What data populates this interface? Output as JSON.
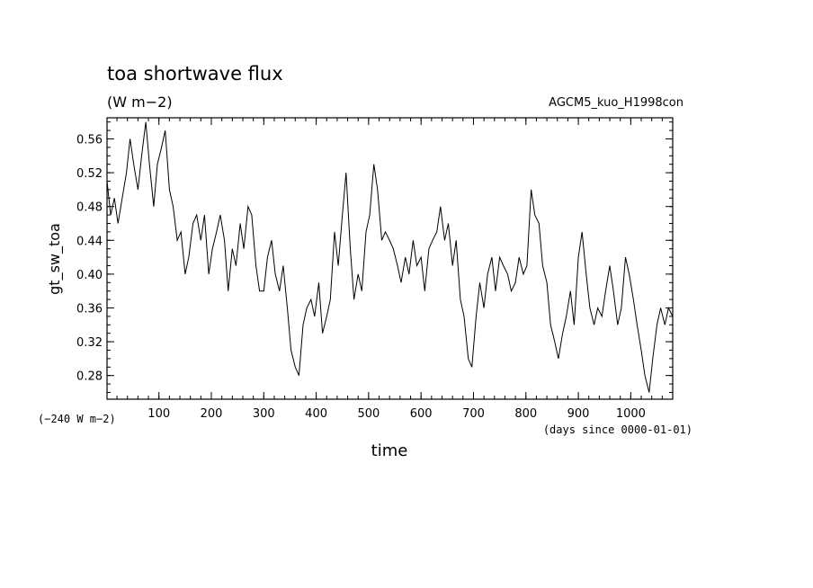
{
  "chart_data": {
    "type": "line",
    "title": "toa shortwave flux",
    "units": "(W m−2)",
    "experiment": "AGCM5_kuo_H1998con",
    "ylabel": "gt_sw_toa",
    "xlabel": "time",
    "xunits": "(days since 0000-01-01)",
    "yoffset_label": "(−240 W m−2)",
    "xlim": [
      1,
      1080
    ],
    "ylim": [
      0.252,
      0.585
    ],
    "xticks": [
      100,
      200,
      300,
      400,
      500,
      600,
      700,
      800,
      900,
      1000
    ],
    "xtick_labels": [
      "100",
      "200",
      "300",
      "400",
      "500",
      "600",
      "700",
      "800",
      "900",
      "1000"
    ],
    "xminor_step": 20,
    "yticks": [
      0.28,
      0.32,
      0.36,
      0.4,
      0.44,
      0.48,
      0.52,
      0.56
    ],
    "ytick_labels": [
      "0.28",
      "0.32",
      "0.36",
      "0.40",
      "0.44",
      "0.48",
      "0.52",
      "0.56"
    ],
    "yminor_step": 0.01,
    "grid": false,
    "series": [
      {
        "x": [
          1,
          8,
          15,
          22,
          30,
          38,
          45,
          52,
          60,
          67,
          75,
          82,
          90,
          97,
          105,
          112,
          120,
          127,
          135,
          142,
          150,
          157,
          165,
          172,
          180,
          187,
          195,
          202,
          210,
          217,
          225,
          232,
          240,
          247,
          255,
          262,
          270,
          277,
          285,
          292,
          300,
          307,
          315,
          322,
          330,
          337,
          345,
          352,
          360,
          367,
          375,
          382,
          390,
          397,
          405,
          412,
          420,
          427,
          435,
          442,
          450,
          457,
          465,
          472,
          480,
          487,
          495,
          502,
          510,
          517,
          525,
          532,
          540,
          547,
          555,
          562,
          570,
          577,
          585,
          592,
          600,
          607,
          615,
          622,
          630,
          637,
          645,
          652,
          660,
          667,
          675,
          682,
          690,
          697,
          705,
          712,
          720,
          727,
          735,
          742,
          750,
          757,
          765,
          772,
          780,
          787,
          795,
          802,
          810,
          817,
          825,
          832,
          840,
          847,
          855,
          862,
          870,
          877,
          885,
          892,
          900,
          907,
          915,
          922,
          930,
          937,
          945,
          952,
          960,
          967,
          975,
          982,
          990,
          997,
          1005,
          1012,
          1020,
          1027,
          1035,
          1042,
          1050,
          1057,
          1065,
          1072,
          1080
        ],
        "y": [
          0.51,
          0.47,
          0.49,
          0.46,
          0.49,
          0.52,
          0.56,
          0.53,
          0.5,
          0.54,
          0.58,
          0.53,
          0.48,
          0.53,
          0.55,
          0.57,
          0.5,
          0.48,
          0.44,
          0.45,
          0.4,
          0.42,
          0.46,
          0.47,
          0.44,
          0.47,
          0.4,
          0.43,
          0.45,
          0.47,
          0.44,
          0.38,
          0.43,
          0.41,
          0.46,
          0.43,
          0.48,
          0.47,
          0.41,
          0.38,
          0.38,
          0.42,
          0.44,
          0.4,
          0.38,
          0.41,
          0.36,
          0.31,
          0.29,
          0.28,
          0.34,
          0.36,
          0.37,
          0.35,
          0.39,
          0.33,
          0.35,
          0.37,
          0.45,
          0.41,
          0.47,
          0.52,
          0.43,
          0.37,
          0.4,
          0.38,
          0.45,
          0.47,
          0.53,
          0.5,
          0.44,
          0.45,
          0.44,
          0.43,
          0.41,
          0.39,
          0.42,
          0.4,
          0.44,
          0.41,
          0.42,
          0.38,
          0.43,
          0.44,
          0.45,
          0.48,
          0.44,
          0.46,
          0.41,
          0.44,
          0.37,
          0.35,
          0.3,
          0.29,
          0.35,
          0.39,
          0.36,
          0.4,
          0.42,
          0.38,
          0.42,
          0.41,
          0.4,
          0.38,
          0.39,
          0.42,
          0.4,
          0.41,
          0.5,
          0.47,
          0.46,
          0.41,
          0.39,
          0.34,
          0.32,
          0.3,
          0.33,
          0.35,
          0.38,
          0.34,
          0.42,
          0.45,
          0.4,
          0.36,
          0.34,
          0.36,
          0.35,
          0.38,
          0.41,
          0.38,
          0.34,
          0.36,
          0.42,
          0.4,
          0.37,
          0.34,
          0.31,
          0.28,
          0.26,
          0.3,
          0.34,
          0.36,
          0.34,
          0.36,
          0.35
        ]
      }
    ]
  }
}
